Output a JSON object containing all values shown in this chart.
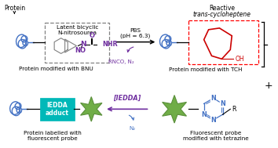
{
  "bg_color": "#ffffff",
  "protein_color": "#4472c4",
  "chemical_color": "#7030a0",
  "bnu_box_color": "#808080",
  "tch_box_color": "#ff0000",
  "iedda_box_color": "#00b8b8",
  "star_color": "#70ad47",
  "star_edge_color": "#5a8f3a",
  "tetrazine_color": "#4472c4",
  "tch_chemical_color": "#cc0000",
  "bicyclic_color": "#808080",
  "label_top_left": "Protein",
  "label_bnu": "Latent bicyclic\nN-nitrosourea",
  "label_bnu_mod": "Protein modified with BNU",
  "label_pbs": "PBS\n(pH = 6.3)",
  "label_byproducts": "RNCO, N₂",
  "label_tch_title_normal": "Reactive",
  "label_tch_title_italic": "trans-cycloheptene",
  "label_tch_mod": "Protein modified with TCH",
  "label_iedda_box": "IEDDA\nadduct",
  "label_iedda_arrow": "[IEDDA]",
  "label_n2": "N₂",
  "label_fp_mod": "Protein labelled with\nfluorescent probe",
  "label_fp_tz": "Fluorescent probe\nmodified with tetrazine",
  "plus_sign": "+",
  "oh_label": "OH"
}
